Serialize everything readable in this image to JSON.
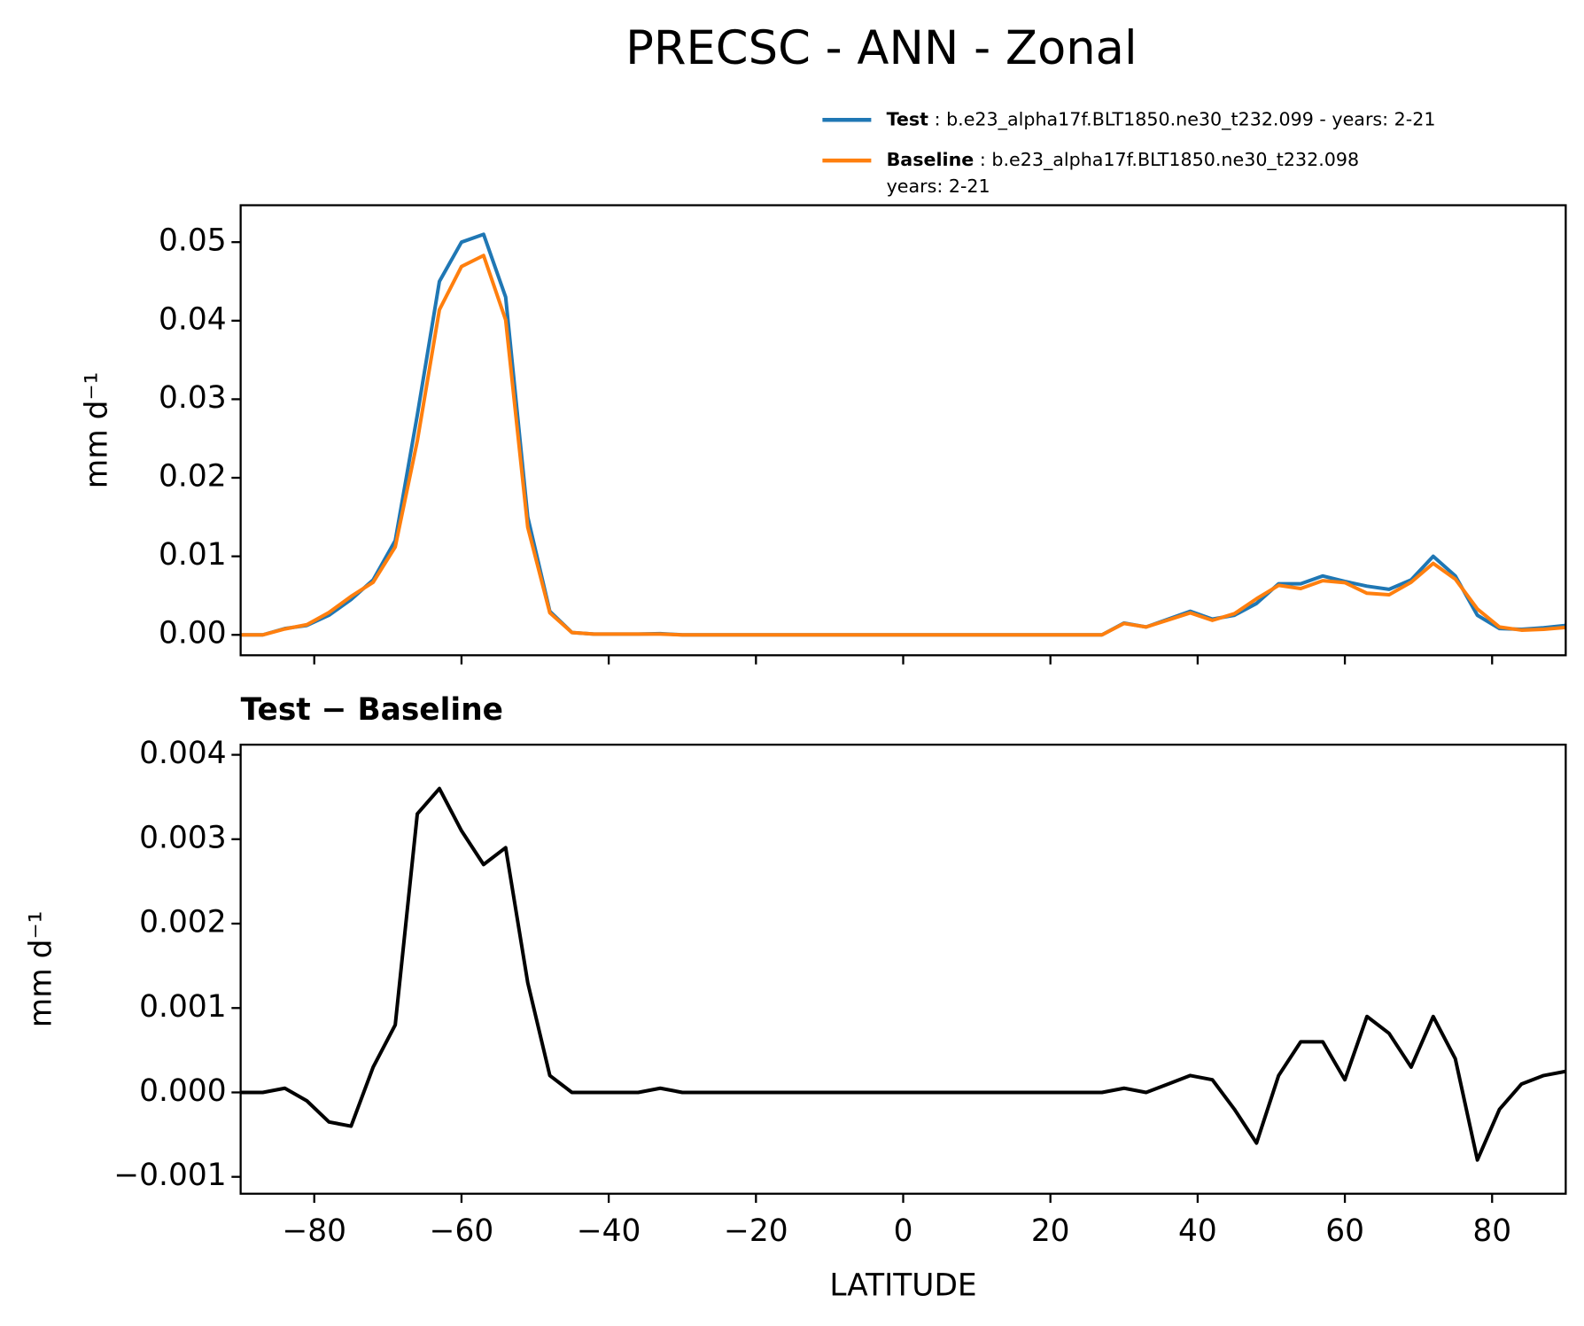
{
  "chart_data": [
    {
      "type": "line",
      "title": "PRECSC - ANN - Zonal",
      "ylabel": "mm d⁻¹",
      "x": [
        -90,
        -87,
        -84,
        -81,
        -78,
        -75,
        -72,
        -69,
        -66,
        -63,
        -60,
        -57,
        -54,
        -51,
        -48,
        -45,
        -42,
        -39,
        -36,
        -33,
        -30,
        -27,
        -24,
        -21,
        -18,
        -15,
        -12,
        -9,
        -6,
        -3,
        0,
        3,
        6,
        9,
        12,
        15,
        18,
        21,
        24,
        27,
        30,
        33,
        36,
        39,
        42,
        45,
        48,
        51,
        54,
        57,
        60,
        63,
        66,
        69,
        72,
        75,
        78,
        81,
        84,
        87,
        90
      ],
      "series": [
        {
          "name": "Test",
          "description": [
            "b.e23_alpha17f.BLT1850.ne30_t232.099 - years: 2-21"
          ],
          "color": "#1f77b4",
          "values": [
            0,
            0,
            0.0008,
            0.0012,
            0.0025,
            0.0045,
            0.007,
            0.012,
            0.028,
            0.045,
            0.05,
            0.051,
            0.043,
            0.015,
            0.003,
            0.0003,
            0.0001,
            0.0001,
            0.0001,
            0.00015,
            0,
            0,
            0,
            0,
            0,
            0,
            0,
            0,
            0,
            0,
            0,
            0,
            0,
            0,
            0,
            0,
            0,
            0,
            0,
            0,
            0.0015,
            0.001,
            0.002,
            0.003,
            0.002,
            0.0025,
            0.004,
            0.0065,
            0.0065,
            0.0075,
            0.0068,
            0.0062,
            0.0058,
            0.007,
            0.01,
            0.0075,
            0.0025,
            0.0008,
            0.0007,
            0.0009,
            0.0012
          ]
        },
        {
          "name": "Baseline",
          "description": [
            "b.e23_alpha17f.BLT1850.ne30_t232.098",
            "years: 2-21"
          ],
          "color": "#ff7f0e",
          "values": [
            0,
            0,
            0.00075,
            0.0013,
            0.00285,
            0.0049,
            0.0067,
            0.0112,
            0.0247,
            0.0414,
            0.0469,
            0.0483,
            0.0401,
            0.0137,
            0.0028,
            0.0003,
            0.0001,
            0.0001,
            0.0001,
            0.0001,
            0,
            0,
            0,
            0,
            0,
            0,
            0,
            0,
            0,
            0,
            0,
            0,
            0,
            0,
            0,
            0,
            0,
            0,
            0,
            0,
            0.00145,
            0.001,
            0.0019,
            0.0028,
            0.00185,
            0.0027,
            0.0046,
            0.0063,
            0.0059,
            0.0069,
            0.00665,
            0.0053,
            0.0051,
            0.0067,
            0.0091,
            0.0071,
            0.0033,
            0.001,
            0.0006,
            0.0007,
            0.00095
          ]
        }
      ],
      "xlim": [
        -90,
        90
      ],
      "xticks": [
        -80,
        -60,
        -40,
        -20,
        0,
        20,
        40,
        60,
        80
      ],
      "ylim": [
        -0.0026,
        0.0547
      ],
      "yticks": [
        {
          "value": 0,
          "label": "0.00"
        },
        {
          "value": 0.01,
          "label": "0.01"
        },
        {
          "value": 0.02,
          "label": "0.02"
        },
        {
          "value": 0.03,
          "label": "0.03"
        },
        {
          "value": 0.04,
          "label": "0.04"
        },
        {
          "value": 0.05,
          "label": "0.05"
        }
      ],
      "legend": "top-right"
    },
    {
      "type": "line",
      "title": "Test − Baseline",
      "ylabel": "mm d⁻¹",
      "xlabel": "LATITUDE",
      "x": [
        -90,
        -87,
        -84,
        -81,
        -78,
        -75,
        -72,
        -69,
        -66,
        -63,
        -60,
        -57,
        -54,
        -51,
        -48,
        -45,
        -42,
        -39,
        -36,
        -33,
        -30,
        -27,
        -24,
        -21,
        -18,
        -15,
        -12,
        -9,
        -6,
        -3,
        0,
        3,
        6,
        9,
        12,
        15,
        18,
        21,
        24,
        27,
        30,
        33,
        36,
        39,
        42,
        45,
        48,
        51,
        54,
        57,
        60,
        63,
        66,
        69,
        72,
        75,
        78,
        81,
        84,
        87,
        90
      ],
      "series": [
        {
          "color": "#000000",
          "values": [
            0,
            0,
            5e-05,
            -0.0001,
            -0.00035,
            -0.0004,
            0.0003,
            0.0008,
            0.0033,
            0.0036,
            0.0031,
            0.0027,
            0.0029,
            0.0013,
            0.0002,
            0,
            0,
            0,
            0,
            5e-05,
            0,
            0,
            0,
            0,
            0,
            0,
            0,
            0,
            0,
            0,
            0,
            0,
            0,
            0,
            0,
            0,
            0,
            0,
            0,
            0,
            5e-05,
            0,
            0.0001,
            0.0002,
            0.00015,
            -0.0002,
            -0.0006,
            0.0002,
            0.0006,
            0.0006,
            0.00015,
            0.0009,
            0.0007,
            0.0003,
            0.0009,
            0.0004,
            -0.0008,
            -0.0002,
            0.0001,
            0.0002,
            0.00025
          ]
        }
      ],
      "xlim": [
        -90,
        90
      ],
      "xticks": [
        {
          "value": -80,
          "label": "−80"
        },
        {
          "value": -60,
          "label": "−60"
        },
        {
          "value": -40,
          "label": "−40"
        },
        {
          "value": -20,
          "label": "−20"
        },
        0,
        20,
        40,
        60,
        80
      ],
      "ylim": [
        -0.0012,
        0.00412
      ],
      "yticks": [
        {
          "value": -0.001,
          "label": "−0.001"
        },
        {
          "value": 0,
          "label": "0.000"
        },
        {
          "value": 0.001,
          "label": "0.001"
        },
        {
          "value": 0.002,
          "label": "0.002"
        },
        {
          "value": 0.003,
          "label": "0.003"
        },
        {
          "value": 0.004,
          "label": "0.004"
        }
      ]
    }
  ]
}
